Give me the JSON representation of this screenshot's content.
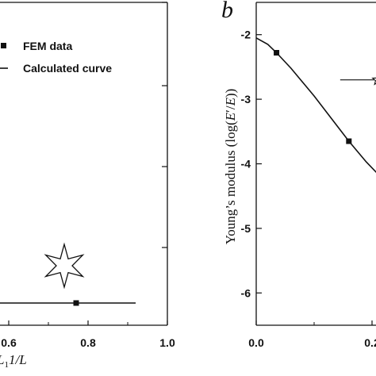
{
  "chart_data": [
    {
      "type": "line",
      "panel_label": "",
      "x_tick_labels": [
        "0.6",
        "0.8",
        "1.0"
      ],
      "x_label_fragment": "1/L",
      "y_tick_labels": [],
      "xlim": [
        0.52,
        1.0
      ],
      "legend": {
        "placement": "top-left",
        "entries": [
          {
            "label": "FEM data",
            "marker": "square"
          },
          {
            "label": "Calculated curve",
            "marker": "line"
          }
        ]
      },
      "series": [
        {
          "name": "FEM data",
          "kind": "markers",
          "x": [
            0.77
          ],
          "y": [
            0.0
          ]
        },
        {
          "name": "Calculated curve",
          "kind": "line",
          "x": [
            0.52,
            0.92
          ],
          "y": [
            0.0,
            0.0
          ]
        }
      ],
      "annotations": [
        {
          "type": "star-marker",
          "x": 0.74,
          "note": "open six-point star"
        }
      ]
    },
    {
      "type": "line",
      "panel_label": "b",
      "xlabel_visible": "",
      "ylabel": "Young's modulus (log(E'/E))",
      "ylabel_parts": {
        "prefix": "Young’s modulus (log(",
        "E1": "E",
        "prime": "′",
        "slash": "/",
        "E2": "E",
        "suffix": "))"
      },
      "x_tick_labels": [
        "0.0",
        "0.2"
      ],
      "y_tick_labels": [
        "-2",
        "-3",
        "-4",
        "-5",
        "-6"
      ],
      "xlim": [
        0.0,
        0.45
      ],
      "ylim": [
        -6.5,
        -1.5
      ],
      "grid": false,
      "series": [
        {
          "name": "FEM data",
          "kind": "markers",
          "x": [
            0.035,
            0.16
          ],
          "y": [
            -2.28,
            -3.65
          ]
        },
        {
          "name": "Calculated curve",
          "kind": "line",
          "x": [
            0.0,
            0.02,
            0.035,
            0.06,
            0.1,
            0.13,
            0.16,
            0.19,
            0.22,
            0.25,
            0.28,
            0.31
          ],
          "y": [
            -2.05,
            -2.15,
            -2.28,
            -2.52,
            -2.95,
            -3.3,
            -3.65,
            -3.97,
            -4.25,
            -4.5,
            -4.72,
            -4.9
          ]
        }
      ],
      "annotations": [
        {
          "type": "star-with-error-bars",
          "x": 0.21,
          "y": -2.7,
          "x_error": 0.065,
          "y_error": 0.42
        }
      ]
    }
  ]
}
